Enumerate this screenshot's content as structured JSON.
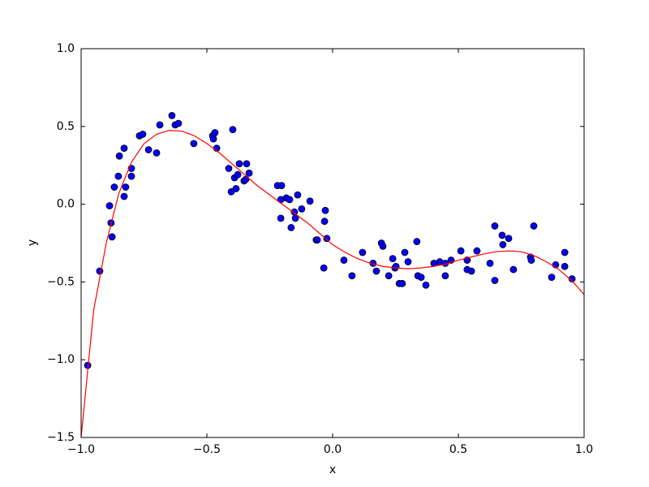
{
  "chart_data": {
    "type": "scatter",
    "xlabel": "x",
    "ylabel": "y",
    "xlim": [
      -1.0,
      1.0
    ],
    "ylim": [
      -1.5,
      1.0
    ],
    "xticks": [
      {
        "value": -1.0,
        "label": "−1.0"
      },
      {
        "value": -0.5,
        "label": "−0.5"
      },
      {
        "value": 0,
        "label": "0.0"
      },
      {
        "value": 0.5,
        "label": "0.5"
      },
      {
        "value": 1.0,
        "label": "1.0"
      }
    ],
    "yticks": [
      {
        "value": -1.5,
        "label": "−1.5"
      },
      {
        "value": -1.0,
        "label": "−1.0"
      },
      {
        "value": -0.5,
        "label": "−0.5"
      },
      {
        "value": 0,
        "label": "0.0"
      },
      {
        "value": 0.5,
        "label": "0.5"
      },
      {
        "value": 1.0,
        "label": "1.0"
      }
    ],
    "series": [
      {
        "type": "scatter",
        "color": "#0000ff",
        "x": [
          -0.974,
          -0.926,
          -0.887,
          -0.881,
          -0.877,
          -0.868,
          -0.852,
          -0.848,
          -0.829,
          -0.829,
          -0.823,
          -0.8,
          -0.8,
          -0.768,
          -0.755,
          -0.732,
          -0.7,
          -0.687,
          -0.639,
          -0.626,
          -0.613,
          -0.552,
          -0.477,
          -0.474,
          -0.468,
          -0.461,
          -0.413,
          -0.403,
          -0.397,
          -0.39,
          -0.384,
          -0.377,
          -0.371,
          -0.352,
          -0.345,
          -0.342,
          -0.332,
          -0.219,
          -0.203,
          -0.206,
          -0.206,
          -0.184,
          -0.171,
          -0.165,
          -0.152,
          -0.148,
          -0.139,
          -0.123,
          -0.09,
          -0.065,
          -0.061,
          -0.035,
          -0.032,
          -0.029,
          -0.023,
          0.045,
          0.077,
          0.119,
          0.161,
          0.174,
          0.194,
          0.2,
          0.223,
          0.239,
          0.248,
          0.252,
          0.265,
          0.277,
          0.287,
          0.3,
          0.335,
          0.339,
          0.352,
          0.371,
          0.403,
          0.426,
          0.448,
          0.448,
          0.471,
          0.51,
          0.535,
          0.535,
          0.552,
          0.574,
          0.626,
          0.645,
          0.645,
          0.674,
          0.677,
          0.7,
          0.719,
          0.787,
          0.79,
          0.8,
          0.871,
          0.887,
          0.923,
          0.923,
          0.952
        ],
        "values": [
          -1.036,
          -0.43,
          -0.01,
          -0.12,
          -0.21,
          0.11,
          0.18,
          0.31,
          0.36,
          0.05,
          0.11,
          0.23,
          0.18,
          0.44,
          0.45,
          0.35,
          0.33,
          0.51,
          0.57,
          0.51,
          0.52,
          0.39,
          0.44,
          0.42,
          0.46,
          0.36,
          0.23,
          0.08,
          0.48,
          0.17,
          0.1,
          0.19,
          0.26,
          0.15,
          0.16,
          0.26,
          0.2,
          0.12,
          0.12,
          0.03,
          -0.09,
          0.04,
          0.03,
          -0.15,
          -0.05,
          -0.09,
          0.06,
          -0.03,
          0.02,
          -0.23,
          -0.23,
          -0.41,
          -0.11,
          -0.04,
          -0.22,
          -0.36,
          -0.46,
          -0.31,
          -0.38,
          -0.43,
          -0.25,
          -0.27,
          -0.46,
          -0.35,
          -0.41,
          -0.4,
          -0.51,
          -0.51,
          -0.31,
          -0.37,
          -0.24,
          -0.46,
          -0.47,
          -0.52,
          -0.38,
          -0.37,
          -0.38,
          -0.46,
          -0.36,
          -0.3,
          -0.42,
          -0.36,
          -0.43,
          -0.3,
          -0.38,
          -0.14,
          -0.49,
          -0.2,
          -0.26,
          -0.22,
          -0.42,
          -0.34,
          -0.36,
          -0.14,
          -0.47,
          -0.39,
          -0.31,
          -0.4,
          -0.48
        ]
      },
      {
        "type": "line",
        "color": "#ff0000",
        "x": [
          -1.0,
          -0.95,
          -0.9,
          -0.85,
          -0.8,
          -0.75,
          -0.7,
          -0.65,
          -0.6,
          -0.55,
          -0.5,
          -0.45,
          -0.4,
          -0.35,
          -0.3,
          -0.25,
          -0.2,
          -0.15,
          -0.1,
          -0.05,
          0,
          0.05,
          0.1,
          0.15,
          0.2,
          0.25,
          0.3,
          0.35,
          0.4,
          0.45,
          0.5,
          0.55,
          0.6,
          0.65,
          0.7,
          0.75,
          0.8,
          0.85,
          0.9,
          0.95,
          1.0
        ],
        "values": [
          -1.5,
          -0.68,
          -0.25,
          0.07,
          0.27,
          0.39,
          0.45,
          0.475,
          0.47,
          0.44,
          0.39,
          0.33,
          0.26,
          0.19,
          0.12,
          0.06,
          0.0,
          -0.06,
          -0.12,
          -0.19,
          -0.26,
          -0.31,
          -0.35,
          -0.38,
          -0.4,
          -0.41,
          -0.415,
          -0.41,
          -0.4,
          -0.385,
          -0.36,
          -0.34,
          -0.32,
          -0.305,
          -0.3,
          -0.305,
          -0.33,
          -0.37,
          -0.42,
          -0.49,
          -0.58
        ]
      }
    ]
  }
}
